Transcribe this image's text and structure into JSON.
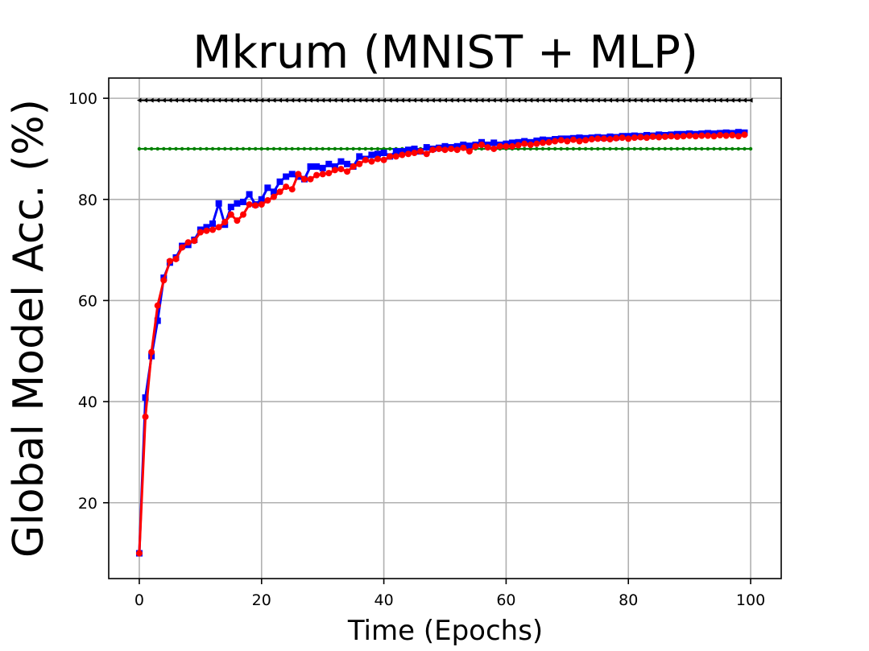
{
  "chart_data": {
    "type": "line",
    "title": "Mkrum (MNIST + MLP)",
    "xlabel": "Time (Epochs)",
    "ylabel": "Global Model Acc. (%)",
    "xlim": [
      -5,
      105
    ],
    "ylim": [
      5,
      104
    ],
    "xticks": [
      0,
      20,
      40,
      60,
      80,
      100
    ],
    "yticks": [
      20,
      40,
      60,
      80,
      100
    ],
    "grid": true,
    "series": [
      {
        "color": "#000000",
        "marker": "triangle-left",
        "x": [
          0,
          100
        ],
        "values": [
          99.6,
          99.6
        ],
        "constant": true
      },
      {
        "color": "#008000",
        "marker": "point",
        "x": [
          0,
          100
        ],
        "values": [
          90,
          90
        ],
        "constant": true
      },
      {
        "color": "#0000ff",
        "marker": "square",
        "x": [
          0,
          1,
          2,
          3,
          4,
          5,
          6,
          7,
          8,
          9,
          10,
          11,
          12,
          13,
          14,
          15,
          16,
          17,
          18,
          19,
          20,
          21,
          22,
          23,
          24,
          25,
          26,
          27,
          28,
          29,
          30,
          31,
          32,
          33,
          34,
          35,
          36,
          37,
          38,
          39,
          40,
          41,
          42,
          43,
          44,
          45,
          46,
          47,
          48,
          49,
          50,
          51,
          52,
          53,
          54,
          55,
          56,
          57,
          58,
          59,
          60,
          61,
          62,
          63,
          64,
          65,
          66,
          67,
          68,
          69,
          70,
          71,
          72,
          73,
          74,
          75,
          76,
          77,
          78,
          79,
          80,
          81,
          82,
          83,
          84,
          85,
          86,
          87,
          88,
          89,
          90,
          91,
          92,
          93,
          94,
          95,
          96,
          97,
          98,
          99
        ],
        "values": [
          10,
          40.8,
          49,
          56,
          64.5,
          67.5,
          68.5,
          70.8,
          71,
          72,
          74,
          74.5,
          75.2,
          79.2,
          75,
          78.5,
          79.2,
          79.5,
          81,
          79,
          80,
          82.3,
          81.5,
          83.5,
          84.5,
          85,
          84.5,
          84,
          86.5,
          86.5,
          86.2,
          87,
          86.5,
          87.5,
          87,
          86.5,
          88.5,
          88,
          88.8,
          89,
          89.2,
          88.5,
          89.5,
          89.5,
          89.8,
          90,
          89.5,
          90.3,
          90,
          90.2,
          90.5,
          90.3,
          90.5,
          90.8,
          90.6,
          90.8,
          91.3,
          90.8,
          91.2,
          90.8,
          91,
          91.2,
          91.3,
          91.5,
          91.3,
          91.6,
          91.8,
          91.7,
          91.9,
          92,
          92,
          92.1,
          92.2,
          92.1,
          92.2,
          92.3,
          92.2,
          92.4,
          92.3,
          92.5,
          92.5,
          92.6,
          92.5,
          92.7,
          92.6,
          92.8,
          92.7,
          92.8,
          92.9,
          92.9,
          93,
          92.9,
          93,
          93.1,
          93,
          93.1,
          93.2,
          93.1,
          93.3,
          93.2
        ]
      },
      {
        "color": "#ff0000",
        "marker": "circle",
        "x": [
          0,
          1,
          2,
          3,
          4,
          5,
          6,
          7,
          8,
          9,
          10,
          11,
          12,
          13,
          14,
          15,
          16,
          17,
          18,
          19,
          20,
          21,
          22,
          23,
          24,
          25,
          26,
          27,
          28,
          29,
          30,
          31,
          32,
          33,
          34,
          35,
          36,
          37,
          38,
          39,
          40,
          41,
          42,
          43,
          44,
          45,
          46,
          47,
          48,
          49,
          50,
          51,
          52,
          53,
          54,
          55,
          56,
          57,
          58,
          59,
          60,
          61,
          62,
          63,
          64,
          65,
          66,
          67,
          68,
          69,
          70,
          71,
          72,
          73,
          74,
          75,
          76,
          77,
          78,
          79,
          80,
          81,
          82,
          83,
          84,
          85,
          86,
          87,
          88,
          89,
          90,
          91,
          92,
          93,
          94,
          95,
          96,
          97,
          98,
          99
        ],
        "values": [
          10,
          37,
          49.8,
          59,
          64,
          67.8,
          68.2,
          70.5,
          71.5,
          71.8,
          73.5,
          73.8,
          74,
          74.5,
          75.5,
          77,
          75.8,
          77,
          79,
          78.8,
          79,
          79.8,
          80.5,
          81.5,
          82.5,
          82,
          85,
          84,
          84,
          84.8,
          85,
          85.2,
          85.8,
          86,
          85.5,
          86.5,
          87,
          87.8,
          87.5,
          88,
          87.8,
          88.5,
          88.5,
          88.8,
          89,
          89.2,
          89.5,
          89,
          89.8,
          90,
          89.8,
          90,
          89.8,
          90.2,
          89.5,
          90.5,
          90.8,
          90.3,
          90,
          90.5,
          90.5,
          90.5,
          90.7,
          91,
          90.8,
          91,
          91.2,
          91.3,
          91.5,
          91.7,
          91.5,
          91.8,
          91.5,
          91.7,
          91.9,
          92,
          92,
          91.9,
          92.1,
          92.2,
          92,
          92.2,
          92.3,
          92.2,
          92.4,
          92.3,
          92.4,
          92.5,
          92.4,
          92.5,
          92.6,
          92.5,
          92.6,
          92.6,
          92.5,
          92.7,
          92.6,
          92.7,
          92.5,
          92.8
        ]
      }
    ]
  }
}
